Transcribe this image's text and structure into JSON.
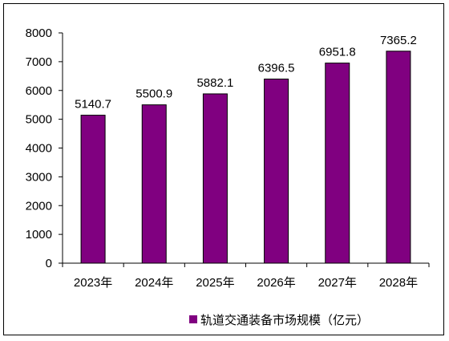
{
  "chart_data": {
    "type": "bar",
    "categories": [
      "2023年",
      "2024年",
      "2025年",
      "2026年",
      "2027年",
      "2028年"
    ],
    "series": [
      {
        "name": "轨道交通装备市场规模（亿元）",
        "values": [
          5140.7,
          5500.9,
          5882.1,
          6396.5,
          6951.8,
          7365.2
        ]
      }
    ],
    "data_labels": [
      "5140.7",
      "5500.9",
      "5882.1",
      "6396.5",
      "6951.8",
      "7365.2"
    ],
    "ylim": [
      0,
      8000
    ],
    "yticks": [
      0,
      1000,
      2000,
      3000,
      4000,
      5000,
      6000,
      7000,
      8000
    ],
    "grid": false,
    "legend_position": "bottom",
    "bar_color": "#800080",
    "title": "",
    "xlabel": "",
    "ylabel": ""
  }
}
